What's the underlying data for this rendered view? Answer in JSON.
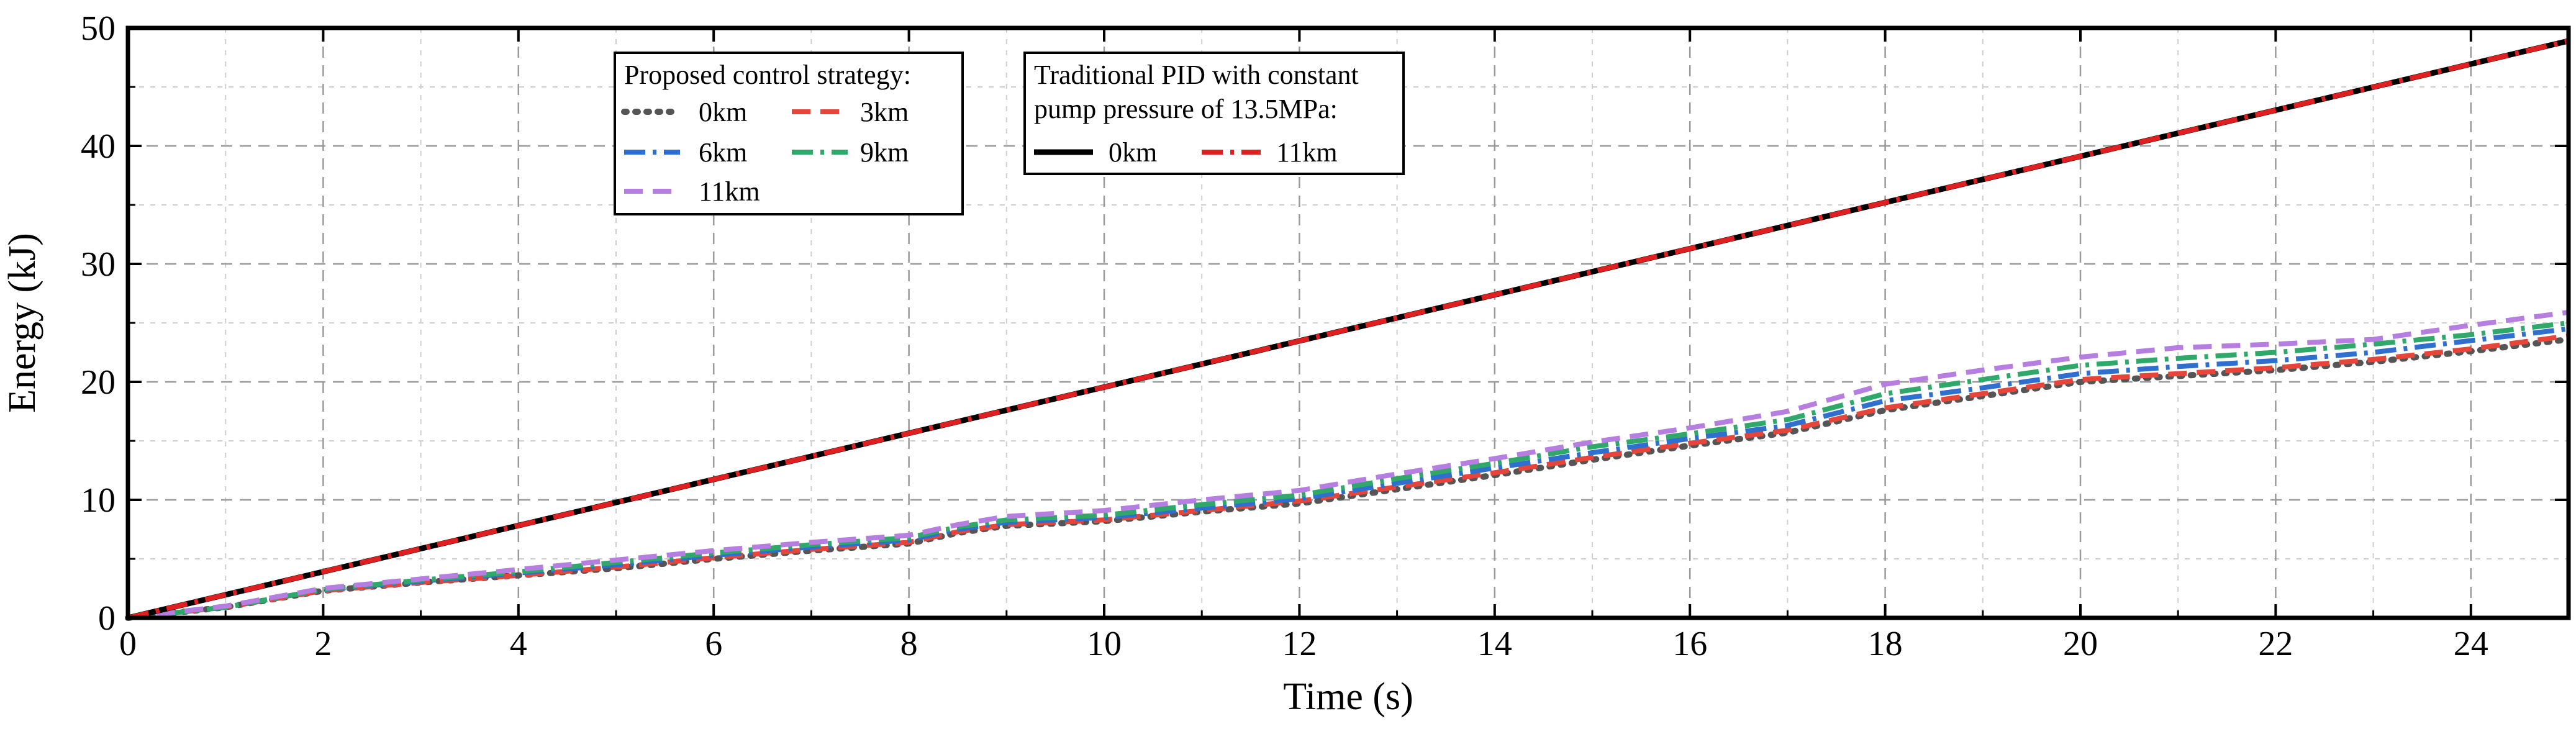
{
  "chart_data": {
    "type": "line",
    "xlabel": "Time (s)",
    "ylabel": "Energy (kJ)",
    "xlim": [
      0,
      25
    ],
    "ylim": [
      0,
      50
    ],
    "xticks": [
      0,
      2,
      4,
      6,
      8,
      10,
      12,
      14,
      16,
      18,
      20,
      22,
      24
    ],
    "yticks": [
      0,
      10,
      20,
      30,
      40,
      50
    ],
    "grid": true,
    "legends": [
      {
        "title_lines": [
          "Proposed control strategy:"
        ],
        "position": "upper-left-center",
        "columns": 2,
        "entries": [
          "0km",
          "3km",
          "6km",
          "9km",
          "11km"
        ]
      },
      {
        "title_lines": [
          "Traditional PID with constant",
          "pump pressure of 13.5MPa:"
        ],
        "position": "upper-center",
        "columns": 2,
        "entries": [
          "0km",
          "11km"
        ]
      }
    ],
    "series": [
      {
        "name": "0km",
        "group": "Proposed control strategy",
        "color": "#555555",
        "style": "dot",
        "x": [
          0,
          1,
          2,
          3,
          4,
          5,
          6,
          7,
          8,
          8.5,
          9,
          10,
          11,
          12,
          13,
          14,
          15,
          16,
          17,
          18,
          19,
          20,
          21,
          22,
          23,
          24,
          25
        ],
        "y": [
          0,
          0.9,
          2.3,
          3.0,
          3.6,
          4.2,
          5.0,
          5.7,
          6.3,
          7.2,
          7.8,
          8.2,
          9.0,
          9.7,
          10.9,
          12.1,
          13.4,
          14.6,
          15.7,
          17.6,
          18.8,
          20.0,
          20.5,
          21.0,
          21.7,
          22.6,
          23.6
        ]
      },
      {
        "name": "3km",
        "group": "Proposed control strategy",
        "color": "#e8453a",
        "style": "dash",
        "x": [
          0,
          1,
          2,
          3,
          4,
          5,
          6,
          7,
          8,
          8.5,
          9,
          10,
          11,
          12,
          13,
          14,
          15,
          16,
          17,
          18,
          19,
          20,
          21,
          22,
          23,
          24,
          25
        ],
        "y": [
          0,
          0.9,
          2.3,
          3.0,
          3.6,
          4.3,
          5.1,
          5.8,
          6.4,
          7.3,
          7.9,
          8.3,
          9.1,
          9.9,
          11.1,
          12.3,
          13.6,
          14.8,
          15.9,
          17.8,
          19.0,
          20.2,
          20.7,
          21.2,
          21.9,
          22.8,
          23.9
        ]
      },
      {
        "name": "6km",
        "group": "Proposed control strategy",
        "color": "#2f6fd0",
        "style": "dashdot",
        "x": [
          0,
          1,
          2,
          3,
          4,
          5,
          6,
          7,
          8,
          8.5,
          9,
          10,
          11,
          12,
          13,
          14,
          15,
          16,
          17,
          18,
          19,
          20,
          21,
          22,
          23,
          24,
          25
        ],
        "y": [
          0,
          0.9,
          2.4,
          3.1,
          3.8,
          4.5,
          5.3,
          6.0,
          6.6,
          7.5,
          8.1,
          8.5,
          9.3,
          10.1,
          11.4,
          12.7,
          14.0,
          15.2,
          16.3,
          18.4,
          19.5,
          20.7,
          21.3,
          21.8,
          22.5,
          23.5,
          24.5
        ]
      },
      {
        "name": "9km",
        "group": "Proposed control strategy",
        "color": "#2fa86a",
        "style": "dashdot",
        "x": [
          0,
          1,
          2,
          3,
          4,
          5,
          6,
          7,
          8,
          8.5,
          9,
          10,
          11,
          12,
          13,
          14,
          15,
          16,
          17,
          18,
          19,
          20,
          21,
          22,
          23,
          24,
          25
        ],
        "y": [
          0,
          0.9,
          2.4,
          3.2,
          3.9,
          4.7,
          5.5,
          6.2,
          6.8,
          7.7,
          8.3,
          8.7,
          9.6,
          10.4,
          11.8,
          13.1,
          14.5,
          15.6,
          16.8,
          19.0,
          20.2,
          21.4,
          22.0,
          22.5,
          23.2,
          24.0,
          25.0
        ]
      },
      {
        "name": "11km",
        "group": "Proposed control strategy",
        "color": "#b57ee0",
        "style": "dash",
        "x": [
          0,
          1,
          2,
          3,
          4,
          5,
          6,
          7,
          8,
          8.5,
          9,
          10,
          11,
          12,
          13,
          14,
          15,
          16,
          17,
          18,
          19,
          20,
          21,
          22,
          23,
          24,
          25
        ],
        "y": [
          0,
          1.0,
          2.5,
          3.3,
          4.1,
          4.9,
          5.7,
          6.4,
          7.0,
          7.9,
          8.6,
          9.1,
          10.0,
          10.8,
          12.2,
          13.5,
          14.9,
          16.1,
          17.5,
          19.8,
          21.0,
          22.1,
          22.9,
          23.2,
          23.6,
          24.8,
          25.9
        ]
      },
      {
        "name": "0km",
        "group": "Traditional PID with constant pump pressure of 13.5MPa",
        "color": "#000000",
        "style": "solid",
        "x": [
          0,
          25
        ],
        "y": [
          0,
          48.9
        ]
      },
      {
        "name": "11km",
        "group": "Traditional PID with constant pump pressure of 13.5MPa",
        "color": "#e02020",
        "style": "dashdot",
        "x": [
          0,
          25
        ],
        "y": [
          0,
          48.9
        ]
      }
    ]
  }
}
